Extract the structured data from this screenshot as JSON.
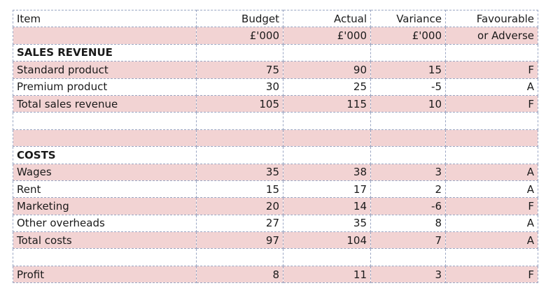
{
  "table": {
    "header": {
      "item": "Item",
      "budget": "Budget",
      "actual": "Actual",
      "variance": "Variance",
      "favourable": "Favourable"
    },
    "units": {
      "item": "",
      "budget": "£'000",
      "actual": "£'000",
      "variance": "£'000",
      "favourable": "or Adverse"
    },
    "sales_section_title": "SALES REVENUE",
    "sales_rows": [
      {
        "item": "Standard product",
        "budget": "75",
        "actual": "90",
        "variance": "15",
        "fa": "F"
      },
      {
        "item": "Premium product",
        "budget": "30",
        "actual": "25",
        "variance": "-5",
        "fa": "A"
      },
      {
        "item": "Total sales revenue",
        "budget": "105",
        "actual": "115",
        "variance": "10",
        "fa": "F"
      }
    ],
    "costs_section_title": "COSTS",
    "cost_rows": [
      {
        "item": "Wages",
        "budget": "35",
        "actual": "38",
        "variance": "3",
        "fa": "A"
      },
      {
        "item": "Rent",
        "budget": "15",
        "actual": "17",
        "variance": "2",
        "fa": "A"
      },
      {
        "item": "Marketing",
        "budget": "20",
        "actual": "14",
        "variance": "-6",
        "fa": "F"
      },
      {
        "item": "Other overheads",
        "budget": "27",
        "actual": "35",
        "variance": "8",
        "fa": "A"
      },
      {
        "item": "Total costs",
        "budget": "97",
        "actual": "104",
        "variance": "7",
        "fa": "A"
      }
    ],
    "profit_row": {
      "item": "Profit",
      "budget": "8",
      "actual": "11",
      "variance": "3",
      "fa": "F"
    }
  }
}
